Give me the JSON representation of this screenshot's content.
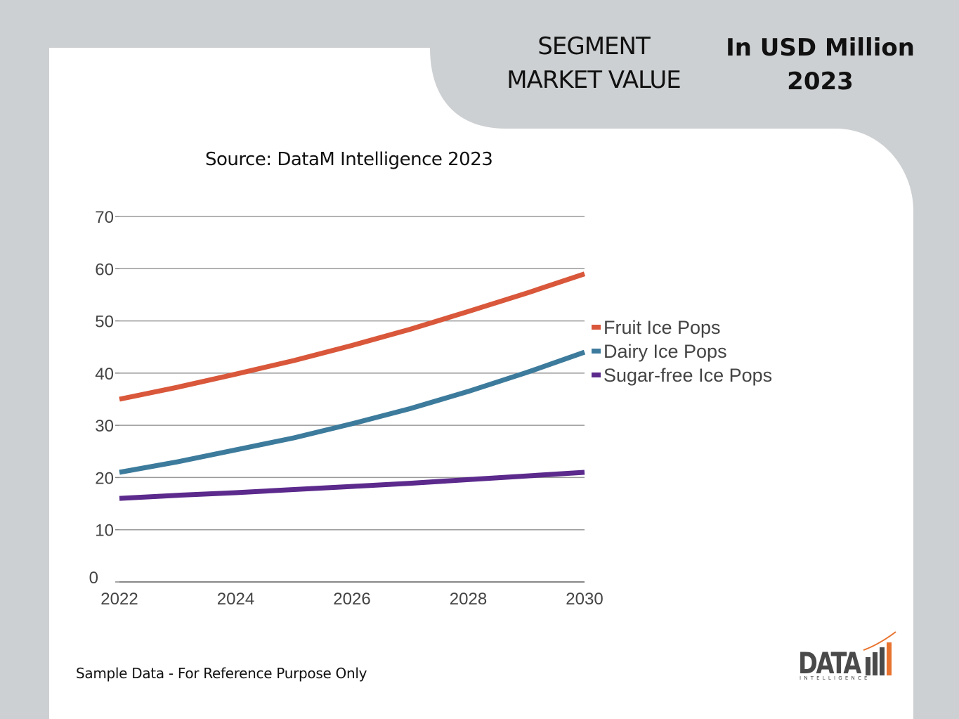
{
  "header": {
    "title_line1": "SEGMENT",
    "title_line2": "MARKET VALUE",
    "unit_line1": "In USD Million",
    "unit_line2": "2023"
  },
  "source": "Source: DataM Intelligence 2023",
  "footnote": "Sample Data - For Reference Purpose Only",
  "logo": {
    "text": "DATA",
    "subtext": "INTELLIGENCE",
    "accent": "#e8732e"
  },
  "chart_data": {
    "type": "line",
    "title": "",
    "xlabel": "",
    "ylabel": "",
    "x": [
      2022,
      2023,
      2024,
      2025,
      2026,
      2027,
      2028,
      2029,
      2030
    ],
    "xticks": [
      "2022",
      "2024",
      "2026",
      "2028",
      "2030"
    ],
    "yticks": [
      "0",
      "10",
      "20",
      "30",
      "40",
      "50",
      "60",
      "70"
    ],
    "xlim": [
      2022,
      2030
    ],
    "ylim": [
      0,
      70
    ],
    "grid": true,
    "legend_position": "right",
    "series": [
      {
        "name": "Fruit Ice Pops",
        "color": "#d9573a",
        "values": [
          35,
          37.3,
          39.8,
          42.4,
          45.3,
          48.4,
          51.8,
          55.3,
          59
        ]
      },
      {
        "name": "Dairy Ice Pops",
        "color": "#3d7b9c",
        "values": [
          21,
          23,
          25.3,
          27.6,
          30.3,
          33.2,
          36.5,
          40.1,
          44
        ]
      },
      {
        "name": "Sugar-free Ice Pops",
        "color": "#5b2a8c",
        "values": [
          16,
          16.6,
          17.1,
          17.7,
          18.3,
          18.9,
          19.6,
          20.3,
          21
        ]
      }
    ]
  }
}
